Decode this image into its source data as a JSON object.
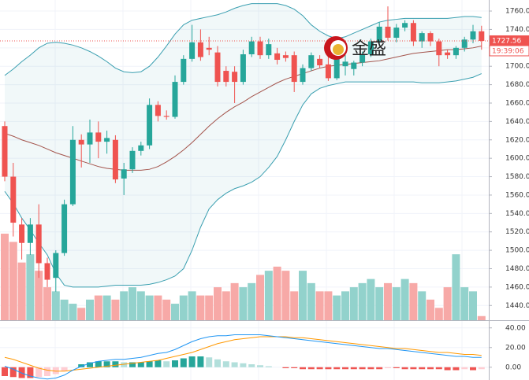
{
  "chart_data": {
    "type": "candlestick",
    "up_color": "#26a69a",
    "down_color": "#ef5350",
    "open": [
      1635,
      1580,
      1528,
      1508,
      1528,
      1486,
      1470,
      1497,
      1550,
      1620,
      1615,
      1628,
      1618,
      1620,
      1578,
      1588,
      1608,
      1614,
      1658,
      1646,
      1645,
      1683,
      1708,
      1726,
      1720,
      1715,
      1695,
      1694,
      1683,
      1713,
      1727,
      1712,
      1714,
      1712,
      1712,
      1683,
      1698,
      1708,
      1702,
      1687,
      1700,
      1697,
      1704,
      1713,
      1727,
      1743,
      1731,
      1742,
      1747,
      1727,
      1736,
      1727,
      1715,
      1712,
      1720,
      1729,
      1738
    ],
    "high": [
      1640,
      1595,
      1535,
      1535,
      1550,
      1492,
      1500,
      1555,
      1635,
      1626,
      1642,
      1640,
      1630,
      1625,
      1595,
      1612,
      1618,
      1665,
      1662,
      1652,
      1690,
      1712,
      1745,
      1740,
      1732,
      1722,
      1700,
      1700,
      1718,
      1732,
      1732,
      1730,
      1720,
      1716,
      1716,
      1702,
      1715,
      1712,
      1712,
      1718,
      1712,
      1706,
      1716,
      1730,
      1748,
      1765,
      1746,
      1750,
      1750,
      1738,
      1738,
      1730,
      1718,
      1722,
      1732,
      1745,
      1744
    ],
    "low": [
      1575,
      1515,
      1490,
      1495,
      1470,
      1460,
      1455,
      1494,
      1548,
      1590,
      1595,
      1600,
      1605,
      1573,
      1560,
      1584,
      1603,
      1610,
      1640,
      1642,
      1643,
      1680,
      1705,
      1706,
      1712,
      1678,
      1678,
      1660,
      1680,
      1710,
      1708,
      1708,
      1702,
      1705,
      1672,
      1680,
      1695,
      1698,
      1684,
      1685,
      1690,
      1690,
      1700,
      1710,
      1722,
      1728,
      1726,
      1738,
      1722,
      1720,
      1722,
      1700,
      1708,
      1708,
      1716,
      1725,
      1718
    ],
    "close": [
      1580,
      1530,
      1508,
      1528,
      1486,
      1468,
      1497,
      1550,
      1620,
      1615,
      1628,
      1618,
      1622,
      1577,
      1588,
      1608,
      1614,
      1658,
      1646,
      1645,
      1683,
      1708,
      1726,
      1710,
      1718,
      1683,
      1683,
      1683,
      1713,
      1727,
      1712,
      1724,
      1707,
      1709,
      1683,
      1698,
      1712,
      1701,
      1687,
      1712,
      1705,
      1704,
      1713,
      1727,
      1743,
      1731,
      1742,
      1747,
      1727,
      1736,
      1727,
      1712,
      1712,
      1720,
      1729,
      1738,
      1727.56
    ],
    "volume": [
      105,
      95,
      70,
      80,
      60,
      40,
      35,
      25,
      20,
      15,
      25,
      30,
      30,
      25,
      35,
      40,
      35,
      30,
      30,
      25,
      20,
      30,
      35,
      30,
      30,
      40,
      35,
      45,
      40,
      45,
      55,
      60,
      65,
      60,
      35,
      60,
      45,
      35,
      35,
      30,
      35,
      40,
      45,
      50,
      40,
      45,
      40,
      50,
      45,
      35,
      25,
      15,
      40,
      80,
      40,
      35,
      5
    ],
    "bollinger": {
      "band_color": "#3a9fb0",
      "middle_color": "#a3534b",
      "upper": [
        1690,
        1697,
        1705,
        1712,
        1720,
        1725,
        1726,
        1725,
        1723,
        1720,
        1716,
        1711,
        1705,
        1698,
        1694,
        1693,
        1694,
        1700,
        1710,
        1722,
        1735,
        1745,
        1750,
        1752,
        1754,
        1756,
        1759,
        1763,
        1766,
        1768,
        1768,
        1768,
        1768,
        1766,
        1762,
        1755,
        1745,
        1738,
        1733,
        1730,
        1732,
        1736,
        1740,
        1744,
        1748,
        1750,
        1751,
        1752,
        1752,
        1752,
        1752,
        1752,
        1752,
        1753,
        1754,
        1754,
        1753
      ],
      "middle": [
        1627,
        1624,
        1620,
        1617,
        1614,
        1610,
        1606,
        1603,
        1600,
        1597,
        1594,
        1591,
        1589,
        1588,
        1587,
        1587,
        1587,
        1588,
        1591,
        1596,
        1602,
        1609,
        1617,
        1626,
        1635,
        1643,
        1650,
        1656,
        1661,
        1667,
        1672,
        1677,
        1682,
        1686,
        1689,
        1692,
        1695,
        1698,
        1700,
        1701,
        1702,
        1703,
        1704,
        1705,
        1706,
        1708,
        1710,
        1712,
        1714,
        1715,
        1716,
        1717,
        1718,
        1718,
        1719,
        1720,
        1722
      ],
      "lower": [
        1564,
        1551,
        1535,
        1522,
        1508,
        1495,
        1475,
        1462,
        1460,
        1460,
        1460,
        1460,
        1461,
        1462,
        1462,
        1462,
        1462,
        1463,
        1465,
        1468,
        1472,
        1480,
        1500,
        1525,
        1545,
        1555,
        1562,
        1567,
        1570,
        1574,
        1580,
        1590,
        1602,
        1620,
        1640,
        1658,
        1670,
        1676,
        1679,
        1681,
        1683,
        1683,
        1683,
        1683,
        1683,
        1683,
        1683,
        1683,
        1683,
        1682,
        1682,
        1682,
        1683,
        1684,
        1686,
        1688,
        1692
      ]
    },
    "ylim": [
      1424,
      1772
    ],
    "yticks": [
      {
        "value": 1440,
        "label": "1440.00"
      },
      {
        "value": 1460,
        "label": "1460.00"
      },
      {
        "value": 1480,
        "label": "1480.00"
      },
      {
        "value": 1500,
        "label": "1500.00"
      },
      {
        "value": 1520,
        "label": "1520.00"
      },
      {
        "value": 1540,
        "label": "1540.00"
      },
      {
        "value": 1560,
        "label": "1560.00"
      },
      {
        "value": 1580,
        "label": "1580.00"
      },
      {
        "value": 1600,
        "label": "1600.00"
      },
      {
        "value": 1620,
        "label": "1620.00"
      },
      {
        "value": 1640,
        "label": "1640.00"
      },
      {
        "value": 1660,
        "label": "1660.00"
      },
      {
        "value": 1680,
        "label": "1680.00"
      },
      {
        "value": 1700,
        "label": "1700.00"
      },
      {
        "value": 1720,
        "label": "1720.00"
      },
      {
        "value": 1740,
        "label": "1740.00"
      },
      {
        "value": 1760,
        "label": "1760.00"
      }
    ],
    "countdown": "19:39:06",
    "watermark": "金盛",
    "macd": {
      "dif_color": "#2196f3",
      "dea_color": "#ff9800",
      "dif": [
        1,
        -2,
        -6,
        -9,
        -11,
        -12,
        -11,
        -8,
        -3,
        1,
        4,
        6,
        7,
        8,
        8,
        9,
        10,
        12,
        14,
        15,
        18,
        22,
        26,
        29,
        31,
        32,
        32,
        33,
        33,
        33,
        33,
        32,
        31,
        30,
        29,
        28,
        27,
        26,
        25,
        24,
        23,
        22,
        21,
        20,
        19,
        19,
        18,
        17,
        16,
        15,
        14,
        13,
        12,
        11,
        11,
        10,
        10
      ],
      "dea": [
        10,
        8,
        5,
        2,
        -1,
        -3,
        -4,
        -4,
        -3,
        -2,
        -1,
        0,
        1,
        2,
        3,
        4,
        5,
        6,
        7,
        9,
        11,
        13,
        15,
        18,
        21,
        24,
        26,
        28,
        29,
        30,
        31,
        31,
        31,
        31,
        30,
        30,
        29,
        28,
        27,
        26,
        25,
        24,
        23,
        22,
        21,
        20,
        19,
        19,
        18,
        17,
        16,
        15,
        15,
        14,
        13,
        13,
        12
      ],
      "histogram": [
        -9,
        -10,
        -11,
        -11,
        -10,
        -9,
        -7,
        -4,
        0,
        3,
        5,
        6,
        6,
        6,
        5,
        5,
        5,
        6,
        7,
        6,
        7,
        9,
        11,
        11,
        10,
        8,
        6,
        5,
        4,
        3,
        2,
        1,
        0,
        -1,
        -1,
        -2,
        -2,
        -2,
        -2,
        -2,
        -2,
        -2,
        -2,
        -2,
        -2,
        -1,
        -1,
        -2,
        -2,
        -2,
        -2,
        -2,
        -3,
        -3,
        -2,
        -3,
        -2
      ],
      "ylim": [
        -13,
        47
      ],
      "yticks": [
        {
          "value": 0,
          "label": "0.00"
        },
        {
          "value": 20,
          "label": "20.00"
        },
        {
          "value": 40,
          "label": "40.00"
        }
      ]
    }
  }
}
